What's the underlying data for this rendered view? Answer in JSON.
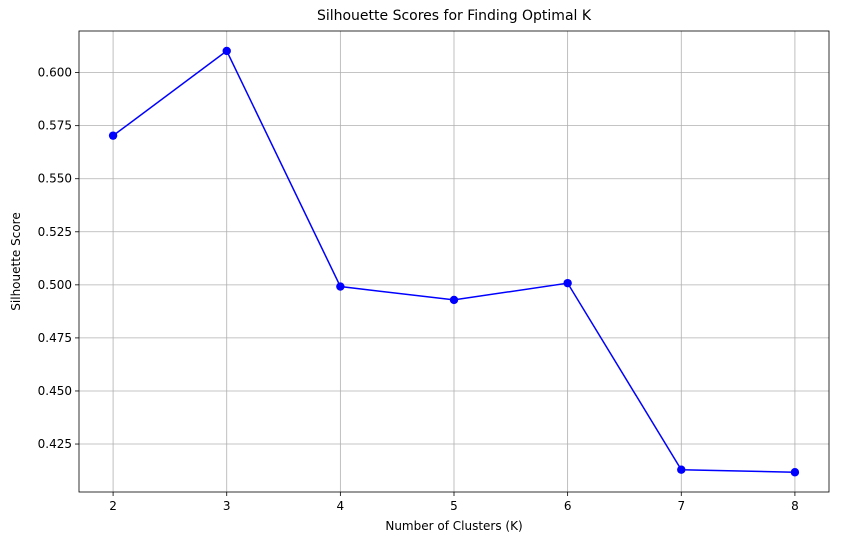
{
  "chart_data": {
    "type": "line",
    "title": "Silhouette Scores for Finding Optimal K",
    "xlabel": "Number of Clusters (K)",
    "ylabel": "Silhouette Score",
    "x": [
      2,
      3,
      4,
      5,
      6,
      7,
      8
    ],
    "series": [
      {
        "values": [
          0.5703,
          0.6102,
          0.4992,
          0.4929,
          0.5008,
          0.4129,
          0.4117
        ],
        "color": "#0000ff",
        "marker": "circle"
      }
    ],
    "xticks": [
      "2",
      "3",
      "4",
      "5",
      "6",
      "7",
      "8"
    ],
    "yticks": [
      "0.425",
      "0.450",
      "0.475",
      "0.500",
      "0.525",
      "0.550",
      "0.575",
      "0.600"
    ],
    "xlim": [
      1.7,
      8.3
    ],
    "ylim": [
      0.4024,
      0.6196
    ],
    "grid": true
  }
}
